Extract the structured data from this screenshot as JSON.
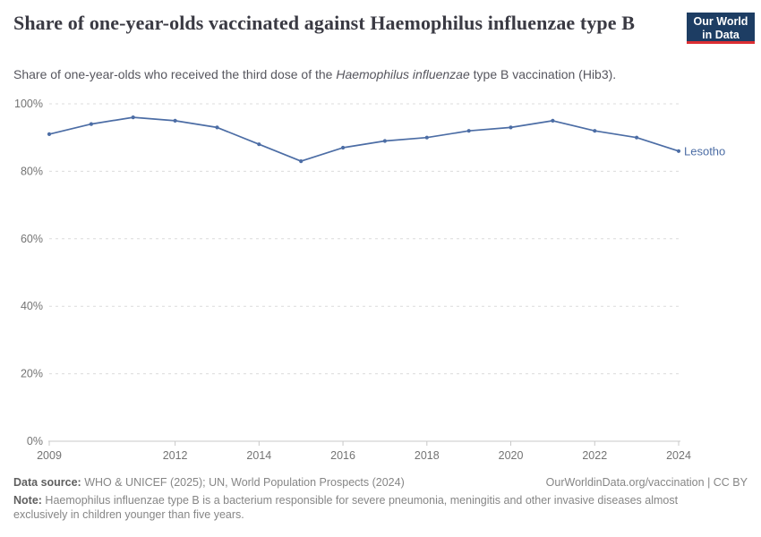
{
  "header": {
    "title": "Share of one-year-olds vaccinated against Haemophilus influenzae type B",
    "subtitle_part1": "Share of one-year-olds who received the third dose of the ",
    "subtitle_italic": "Haemophilus influenzae",
    "subtitle_part2": " type B vaccination (Hib3).",
    "logo_line1": "Our World",
    "logo_line2": "in Data"
  },
  "chart_data": {
    "type": "line",
    "title": "Share of one-year-olds vaccinated against Haemophilus influenzae type B",
    "xlabel": "",
    "ylabel": "",
    "xlim": [
      2009,
      2024
    ],
    "ylim": [
      0,
      100
    ],
    "grid": "horizontal-dashed",
    "legend_position": "end-of-line-label",
    "x_ticks": [
      2009,
      2012,
      2014,
      2016,
      2018,
      2020,
      2022,
      2024
    ],
    "y_ticks": [
      0,
      20,
      40,
      60,
      80,
      100
    ],
    "y_tick_suffix": "%",
    "x": [
      2009,
      2010,
      2011,
      2012,
      2013,
      2014,
      2015,
      2016,
      2017,
      2018,
      2019,
      2020,
      2021,
      2022,
      2023,
      2024
    ],
    "series": [
      {
        "name": "Lesotho",
        "color": "#4c6da5",
        "values": [
          91,
          94,
          96,
          95,
          93,
          88,
          83,
          87,
          89,
          90,
          92,
          93,
          95,
          92,
          90,
          86
        ]
      }
    ]
  },
  "footer": {
    "datasource_label": "Data source:",
    "datasource_text": " WHO & UNICEF (2025); UN, World Population Prospects (2024)",
    "link_text": "OurWorldinData.org/vaccination | CC BY",
    "note_label": "Note:",
    "note_text": " Haemophilus influenzae type B is a bacterium responsible for severe pneumonia, meningitis and other invasive diseases almost exclusively in children younger than five years."
  },
  "colors": {
    "grid": "#dcdcdc",
    "axis": "#c8c8c8",
    "tick_text": "#747474",
    "logo_bg": "#1d3d63",
    "logo_accent": "#dc2e33"
  }
}
